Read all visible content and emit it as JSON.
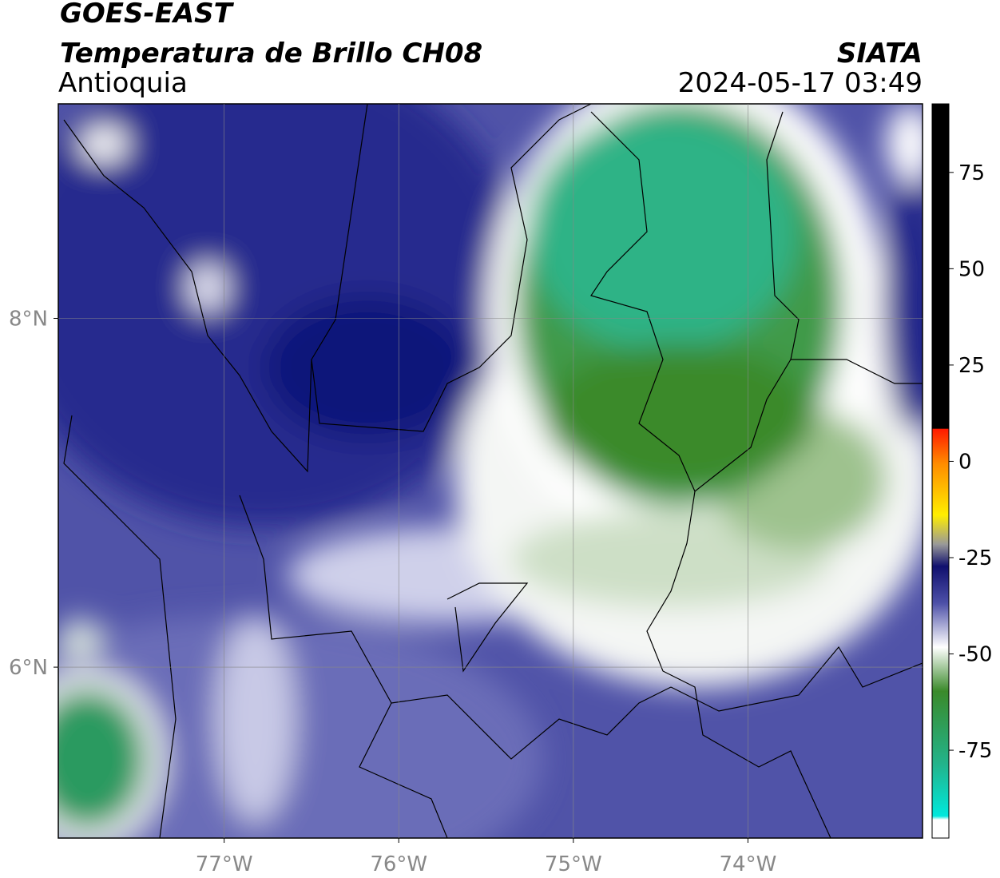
{
  "header": {
    "satellite": "GOES-EAST",
    "product": "Temperatura de Brillo CH08",
    "organization": "SIATA",
    "region": "Antioquia",
    "datetime": "2024-05-17 03:49"
  },
  "map": {
    "xlim": [
      -77.95,
      -73.0
    ],
    "ylim": [
      5.02,
      9.23
    ],
    "xticks": [
      {
        "value": -77,
        "label": "77°W"
      },
      {
        "value": -76,
        "label": "76°W"
      },
      {
        "value": -75,
        "label": "75°W"
      },
      {
        "value": -74,
        "label": "74°W"
      }
    ],
    "yticks": [
      {
        "value": 8,
        "label": "8°N"
      },
      {
        "value": 6,
        "label": "6°N"
      }
    ],
    "grid": true
  },
  "colorbar": {
    "lim": [
      -97.8,
      92.8
    ],
    "ticks": [
      75,
      50,
      25,
      0,
      -25,
      -50,
      -75
    ]
  }
}
